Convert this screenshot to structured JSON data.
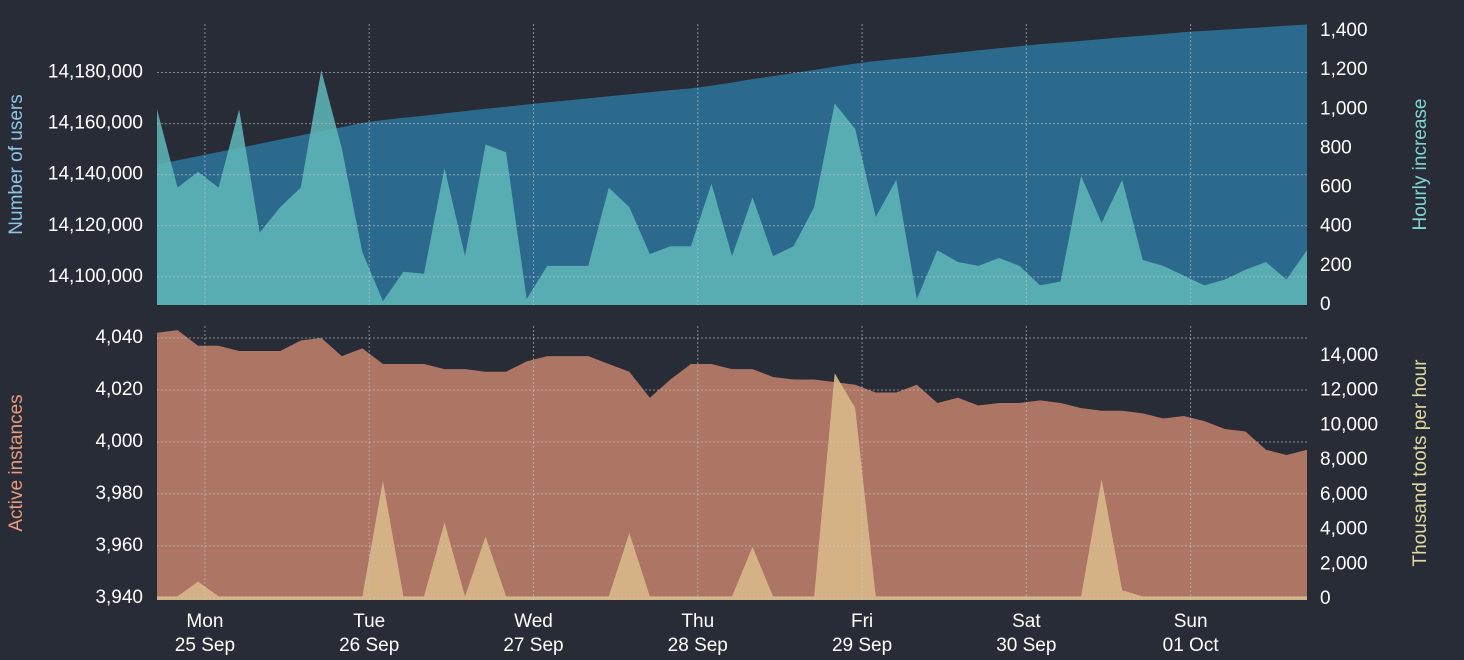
{
  "chart_data": {
    "type": "area",
    "x": [
      -7,
      -4,
      -1,
      2,
      5,
      8,
      11,
      14,
      17,
      20,
      23,
      26,
      29,
      32,
      35,
      38,
      41,
      44,
      47,
      50,
      53,
      56,
      59,
      62,
      65,
      68,
      71,
      74,
      77,
      80,
      83,
      86,
      89,
      92,
      95,
      98,
      101,
      104,
      107,
      110,
      113,
      116,
      119,
      122,
      125,
      128,
      131,
      134,
      137,
      140,
      143,
      146,
      149,
      152,
      155,
      158,
      161
    ],
    "xlim": [
      -7,
      161
    ],
    "xticks": [
      {
        "value": 0,
        "label": [
          "Mon",
          "25 Sep"
        ]
      },
      {
        "value": 24,
        "label": [
          "Tue",
          "26 Sep"
        ]
      },
      {
        "value": 48,
        "label": [
          "Wed",
          "27 Sep"
        ]
      },
      {
        "value": 72,
        "label": [
          "Thu",
          "28 Sep"
        ]
      },
      {
        "value": 96,
        "label": [
          "Fri",
          "29 Sep"
        ]
      },
      {
        "value": 120,
        "label": [
          "Sat",
          "30 Sep"
        ]
      },
      {
        "value": 144,
        "label": [
          "Sun",
          "01 Oct"
        ]
      }
    ],
    "grid": true,
    "panels": [
      {
        "ylabel": "Number of users",
        "y2label": "Hourly increase",
        "ylim": [
          14089000,
          14199000
        ],
        "yticks": [
          {
            "value": 14100000,
            "label": "14,100,000"
          },
          {
            "value": 14120000,
            "label": "14,120,000"
          },
          {
            "value": 14140000,
            "label": "14,140,000"
          },
          {
            "value": 14160000,
            "label": "14,160,000"
          },
          {
            "value": 14180000,
            "label": "14,180,000"
          }
        ],
        "y2lim": [
          0,
          1436
        ],
        "y2ticks": [
          0,
          200,
          400,
          600,
          800,
          {
            "value": 1000,
            "label": "1,000"
          },
          {
            "value": 1200,
            "label": "1,200"
          },
          {
            "value": 1400,
            "label": "1,400"
          }
        ],
        "series": [
          {
            "name": "Number of users",
            "color": "#2b6a8c",
            "axis": "y",
            "opacity": 1,
            "values": [
              14144000,
              14145600,
              14147300,
              14148900,
              14150500,
              14152100,
              14153800,
              14155400,
              14157000,
              14158600,
              14160300,
              14161400,
              14162300,
              14163100,
              14164000,
              14164900,
              14165800,
              14166600,
              14167500,
              14168300,
              14169100,
              14169900,
              14170700,
              14171500,
              14172300,
              14173100,
              14173800,
              14174900,
              14176100,
              14177400,
              14178600,
              14179800,
              14181000,
              14182300,
              14183500,
              14184500,
              14185300,
              14186100,
              14187000,
              14187800,
              14188700,
              14189500,
              14190300,
              14191100,
              14191700,
              14192400,
              14193100,
              14193800,
              14194400,
              14195100,
              14195800,
              14196300,
              14196800,
              14197300,
              14197800,
              14198300,
              14198800
            ]
          },
          {
            "name": "Hourly increase",
            "color": "#5fb8b8",
            "axis": "y2",
            "opacity": 0.85,
            "values": [
              1000,
              600,
              680,
              600,
              1000,
              370,
              500,
              600,
              1200,
              800,
              270,
              20,
              170,
              160,
              700,
              250,
              820,
              780,
              30,
              200,
              200,
              200,
              600,
              500,
              260,
              300,
              300,
              620,
              250,
              550,
              250,
              300,
              500,
              1030,
              900,
              450,
              640,
              30,
              280,
              220,
              200,
              240,
              200,
              100,
              120,
              660,
              420,
              640,
              230,
              200,
              150,
              100,
              130,
              180,
              220,
              130,
              280
            ]
          }
        ]
      },
      {
        "ylabel": "Active instances",
        "y2label": "Thousand toots per hour",
        "ylim": [
          3939.2,
          4044.6
        ],
        "yticks": [
          {
            "value": 3940,
            "label": "3,940"
          },
          {
            "value": 3960,
            "label": "3,960"
          },
          {
            "value": 3980,
            "label": "3,980"
          },
          {
            "value": 4000,
            "label": "4,000"
          },
          {
            "value": 4020,
            "label": "4,020"
          },
          {
            "value": 4040,
            "label": "4,040"
          }
        ],
        "y2lim": [
          -58,
          15720
        ],
        "y2ticks": [
          0,
          {
            "value": 2000,
            "label": "2,000"
          },
          {
            "value": 4000,
            "label": "4,000"
          },
          {
            "value": 6000,
            "label": "6,000"
          },
          {
            "value": 8000,
            "label": "8,000"
          },
          {
            "value": 10000,
            "label": "10,000"
          },
          {
            "value": 12000,
            "label": "12,000"
          },
          {
            "value": 14000,
            "label": "14,000"
          }
        ],
        "series": [
          {
            "name": "Active instances",
            "color": "#ad7563",
            "axis": "y",
            "opacity": 1,
            "values": [
              4042,
              4043,
              4037,
              4037,
              4035,
              4035,
              4035,
              4039,
              4040,
              4033,
              4036,
              4030,
              4030,
              4030,
              4028,
              4028,
              4027,
              4027,
              4031,
              4033,
              4033,
              4033,
              4030,
              4027,
              4017,
              4024,
              4030,
              4030,
              4028,
              4028,
              4025,
              4024,
              4024,
              4023,
              4022,
              4019,
              4019,
              4022,
              4015,
              4017,
              4014,
              4015,
              4015,
              4016,
              4015,
              4013,
              4012,
              4012,
              4011,
              4009,
              4010,
              4008,
              4005,
              4004,
              3997,
              3995,
              3997
            ]
          },
          {
            "name": "Thousand toots per hour",
            "color": "#d9b98a",
            "axis": "y2",
            "opacity": 0.9,
            "values": [
              150,
              150,
              1000,
              150,
              150,
              150,
              150,
              150,
              150,
              150,
              150,
              6800,
              150,
              150,
              4400,
              150,
              3600,
              150,
              150,
              150,
              150,
              150,
              150,
              3800,
              150,
              150,
              150,
              150,
              150,
              3000,
              150,
              150,
              150,
              13000,
              11000,
              150,
              150,
              150,
              150,
              150,
              150,
              150,
              150,
              150,
              150,
              150,
              6900,
              500,
              150,
              150,
              150,
              150,
              150,
              150,
              150,
              150,
              150
            ]
          }
        ]
      }
    ]
  }
}
